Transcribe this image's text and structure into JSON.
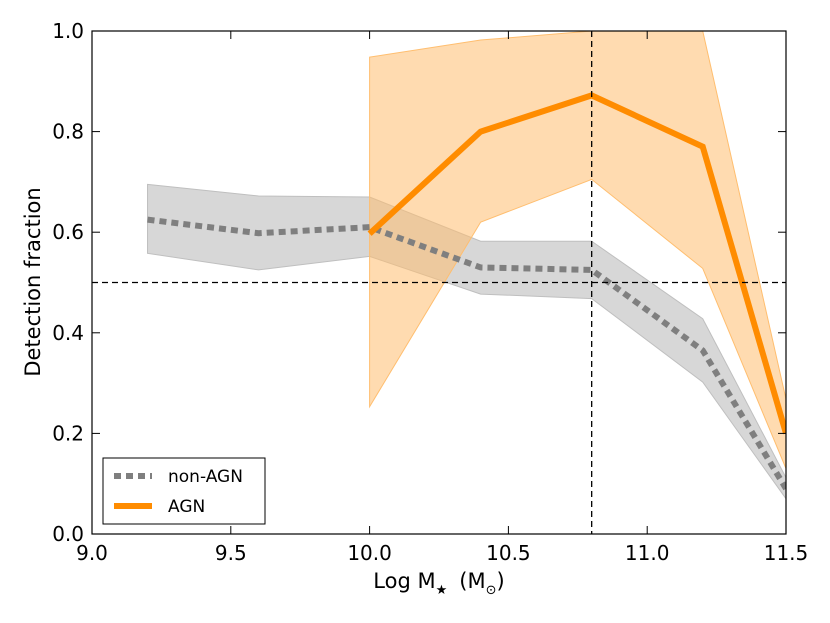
{
  "chart_data": {
    "type": "line",
    "title": "",
    "xlabel": "Log M",
    "xlabel_sub": "★",
    "xlabel_units": "(M",
    "xlabel_units_sub": "⊙",
    "xlabel_units_close": ")",
    "ylabel": "Detection fraction",
    "xlim": [
      9.0,
      11.5
    ],
    "ylim": [
      0.0,
      1.0
    ],
    "xticks": [
      "9.0",
      "9.5",
      "10.0",
      "10.5",
      "11.0",
      "11.5"
    ],
    "yticks": [
      "0.0",
      "0.2",
      "0.4",
      "0.6",
      "0.8",
      "1.0"
    ],
    "grid": false,
    "legend_position": "lower-left",
    "series": [
      {
        "name": "non-AGN",
        "style": "dotted",
        "color": "#7f7f7f",
        "band_color": "#bfbfbf",
        "x": [
          9.2,
          9.6,
          10.0,
          10.4,
          10.8,
          11.2,
          11.5
        ],
        "y": [
          0.625,
          0.598,
          0.61,
          0.53,
          0.525,
          0.365,
          0.09
        ],
        "lower": [
          0.558,
          0.525,
          0.552,
          0.477,
          0.468,
          0.302,
          0.07
        ],
        "upper": [
          0.695,
          0.672,
          0.67,
          0.582,
          0.582,
          0.428,
          0.112
        ]
      },
      {
        "name": "AGN",
        "style": "solid",
        "color": "#ff8c00",
        "band_color": "#ffbe6f",
        "x": [
          10.0,
          10.4,
          10.8,
          11.2,
          11.5
        ],
        "y": [
          0.597,
          0.8,
          0.872,
          0.77,
          0.2
        ],
        "lower": [
          0.253,
          0.62,
          0.705,
          0.528,
          0.13
        ],
        "upper": [
          0.948,
          0.982,
          1.0,
          1.0,
          0.268
        ]
      }
    ],
    "reference_lines": {
      "horizontal_y": 0.5,
      "vertical_x": 10.8
    }
  }
}
